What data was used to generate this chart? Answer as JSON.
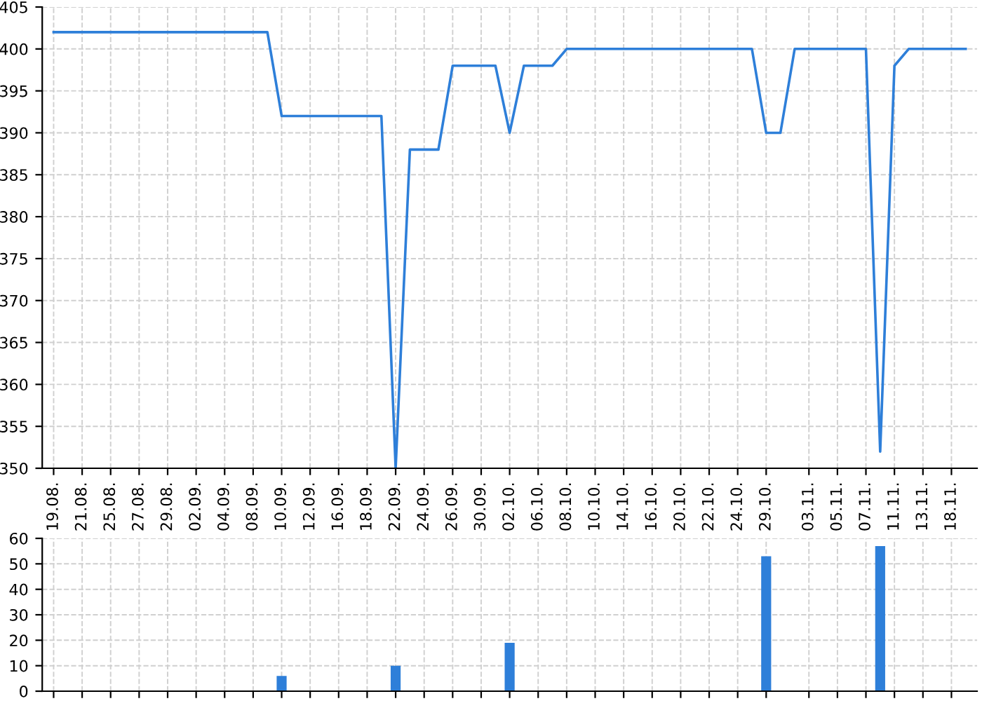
{
  "chart_data": [
    {
      "type": "line",
      "color": "#2e7fd9",
      "grid": true,
      "ylim": [
        350,
        405
      ],
      "yticks": [
        350,
        355,
        360,
        365,
        370,
        375,
        380,
        385,
        390,
        395,
        400,
        405
      ],
      "categories": [
        "19.08.",
        null,
        "21.08.",
        null,
        "25.08.",
        null,
        "27.08.",
        null,
        "29.08.",
        null,
        "02.09.",
        null,
        "04.09.",
        null,
        "08.09.",
        null,
        "10.09.",
        null,
        "12.09.",
        null,
        "16.09.",
        null,
        "18.09.",
        null,
        "22.09.",
        null,
        "24.09.",
        null,
        "26.09.",
        null,
        "30.09.",
        null,
        "02.10.",
        null,
        "06.10.",
        null,
        "08.10.",
        null,
        "10.10.",
        null,
        "14.10.",
        null,
        "16.10.",
        null,
        "20.10.",
        null,
        "22.10.",
        null,
        "24.10.",
        null,
        "29.10.",
        null,
        null,
        "03.11.",
        null,
        "05.11.",
        null,
        "07.11.",
        null,
        "11.11.",
        null,
        "13.11.",
        null,
        "18.11.",
        null
      ],
      "values": [
        402,
        402,
        402,
        402,
        402,
        402,
        402,
        402,
        402,
        402,
        402,
        402,
        402,
        402,
        402,
        402,
        392,
        392,
        392,
        392,
        392,
        392,
        392,
        392,
        350,
        388,
        388,
        388,
        398,
        398,
        398,
        398,
        390,
        398,
        398,
        398,
        400,
        400,
        400,
        400,
        400,
        400,
        400,
        400,
        400,
        400,
        400,
        400,
        400,
        400,
        390,
        390,
        400,
        400,
        400,
        400,
        400,
        400,
        352,
        398,
        400,
        400,
        400,
        400,
        400
      ]
    },
    {
      "type": "bar",
      "color": "#2e7fd9",
      "grid": true,
      "ylim": [
        0,
        60
      ],
      "yticks": [
        0,
        10,
        20,
        30,
        40,
        50,
        60
      ],
      "tick_labels": "y",
      "categories": [
        "19.08.",
        null,
        "21.08.",
        null,
        "25.08.",
        null,
        "27.08.",
        null,
        "29.08.",
        null,
        "02.09.",
        null,
        "04.09.",
        null,
        "08.09.",
        null,
        "10.09.",
        null,
        "12.09.",
        null,
        "16.09.",
        null,
        "18.09.",
        null,
        "22.09.",
        null,
        "24.09.",
        null,
        "26.09.",
        null,
        "30.09.",
        null,
        "02.10.",
        null,
        "06.10.",
        null,
        "08.10.",
        null,
        "10.10.",
        null,
        "14.10.",
        null,
        "16.10.",
        null,
        "20.10.",
        null,
        "22.10.",
        null,
        "24.10.",
        null,
        "29.10.",
        null,
        null,
        "03.11.",
        null,
        "05.11.",
        null,
        "07.11.",
        null,
        "11.11.",
        null,
        "13.11.",
        null,
        "18.11.",
        null
      ],
      "values": [
        0,
        0,
        0,
        0,
        0,
        0,
        0,
        0,
        0,
        0,
        0,
        0,
        0,
        0,
        0,
        0,
        6,
        0,
        0,
        0,
        0,
        0,
        0,
        0,
        10,
        0,
        0,
        0,
        0,
        0,
        0,
        0,
        19,
        0,
        0,
        0,
        0,
        0,
        0,
        0,
        0,
        0,
        0,
        0,
        0,
        0,
        0,
        0,
        0,
        0,
        53,
        0,
        0,
        0,
        0,
        0,
        0,
        0,
        57,
        0,
        0,
        0,
        0,
        0,
        0
      ]
    }
  ]
}
